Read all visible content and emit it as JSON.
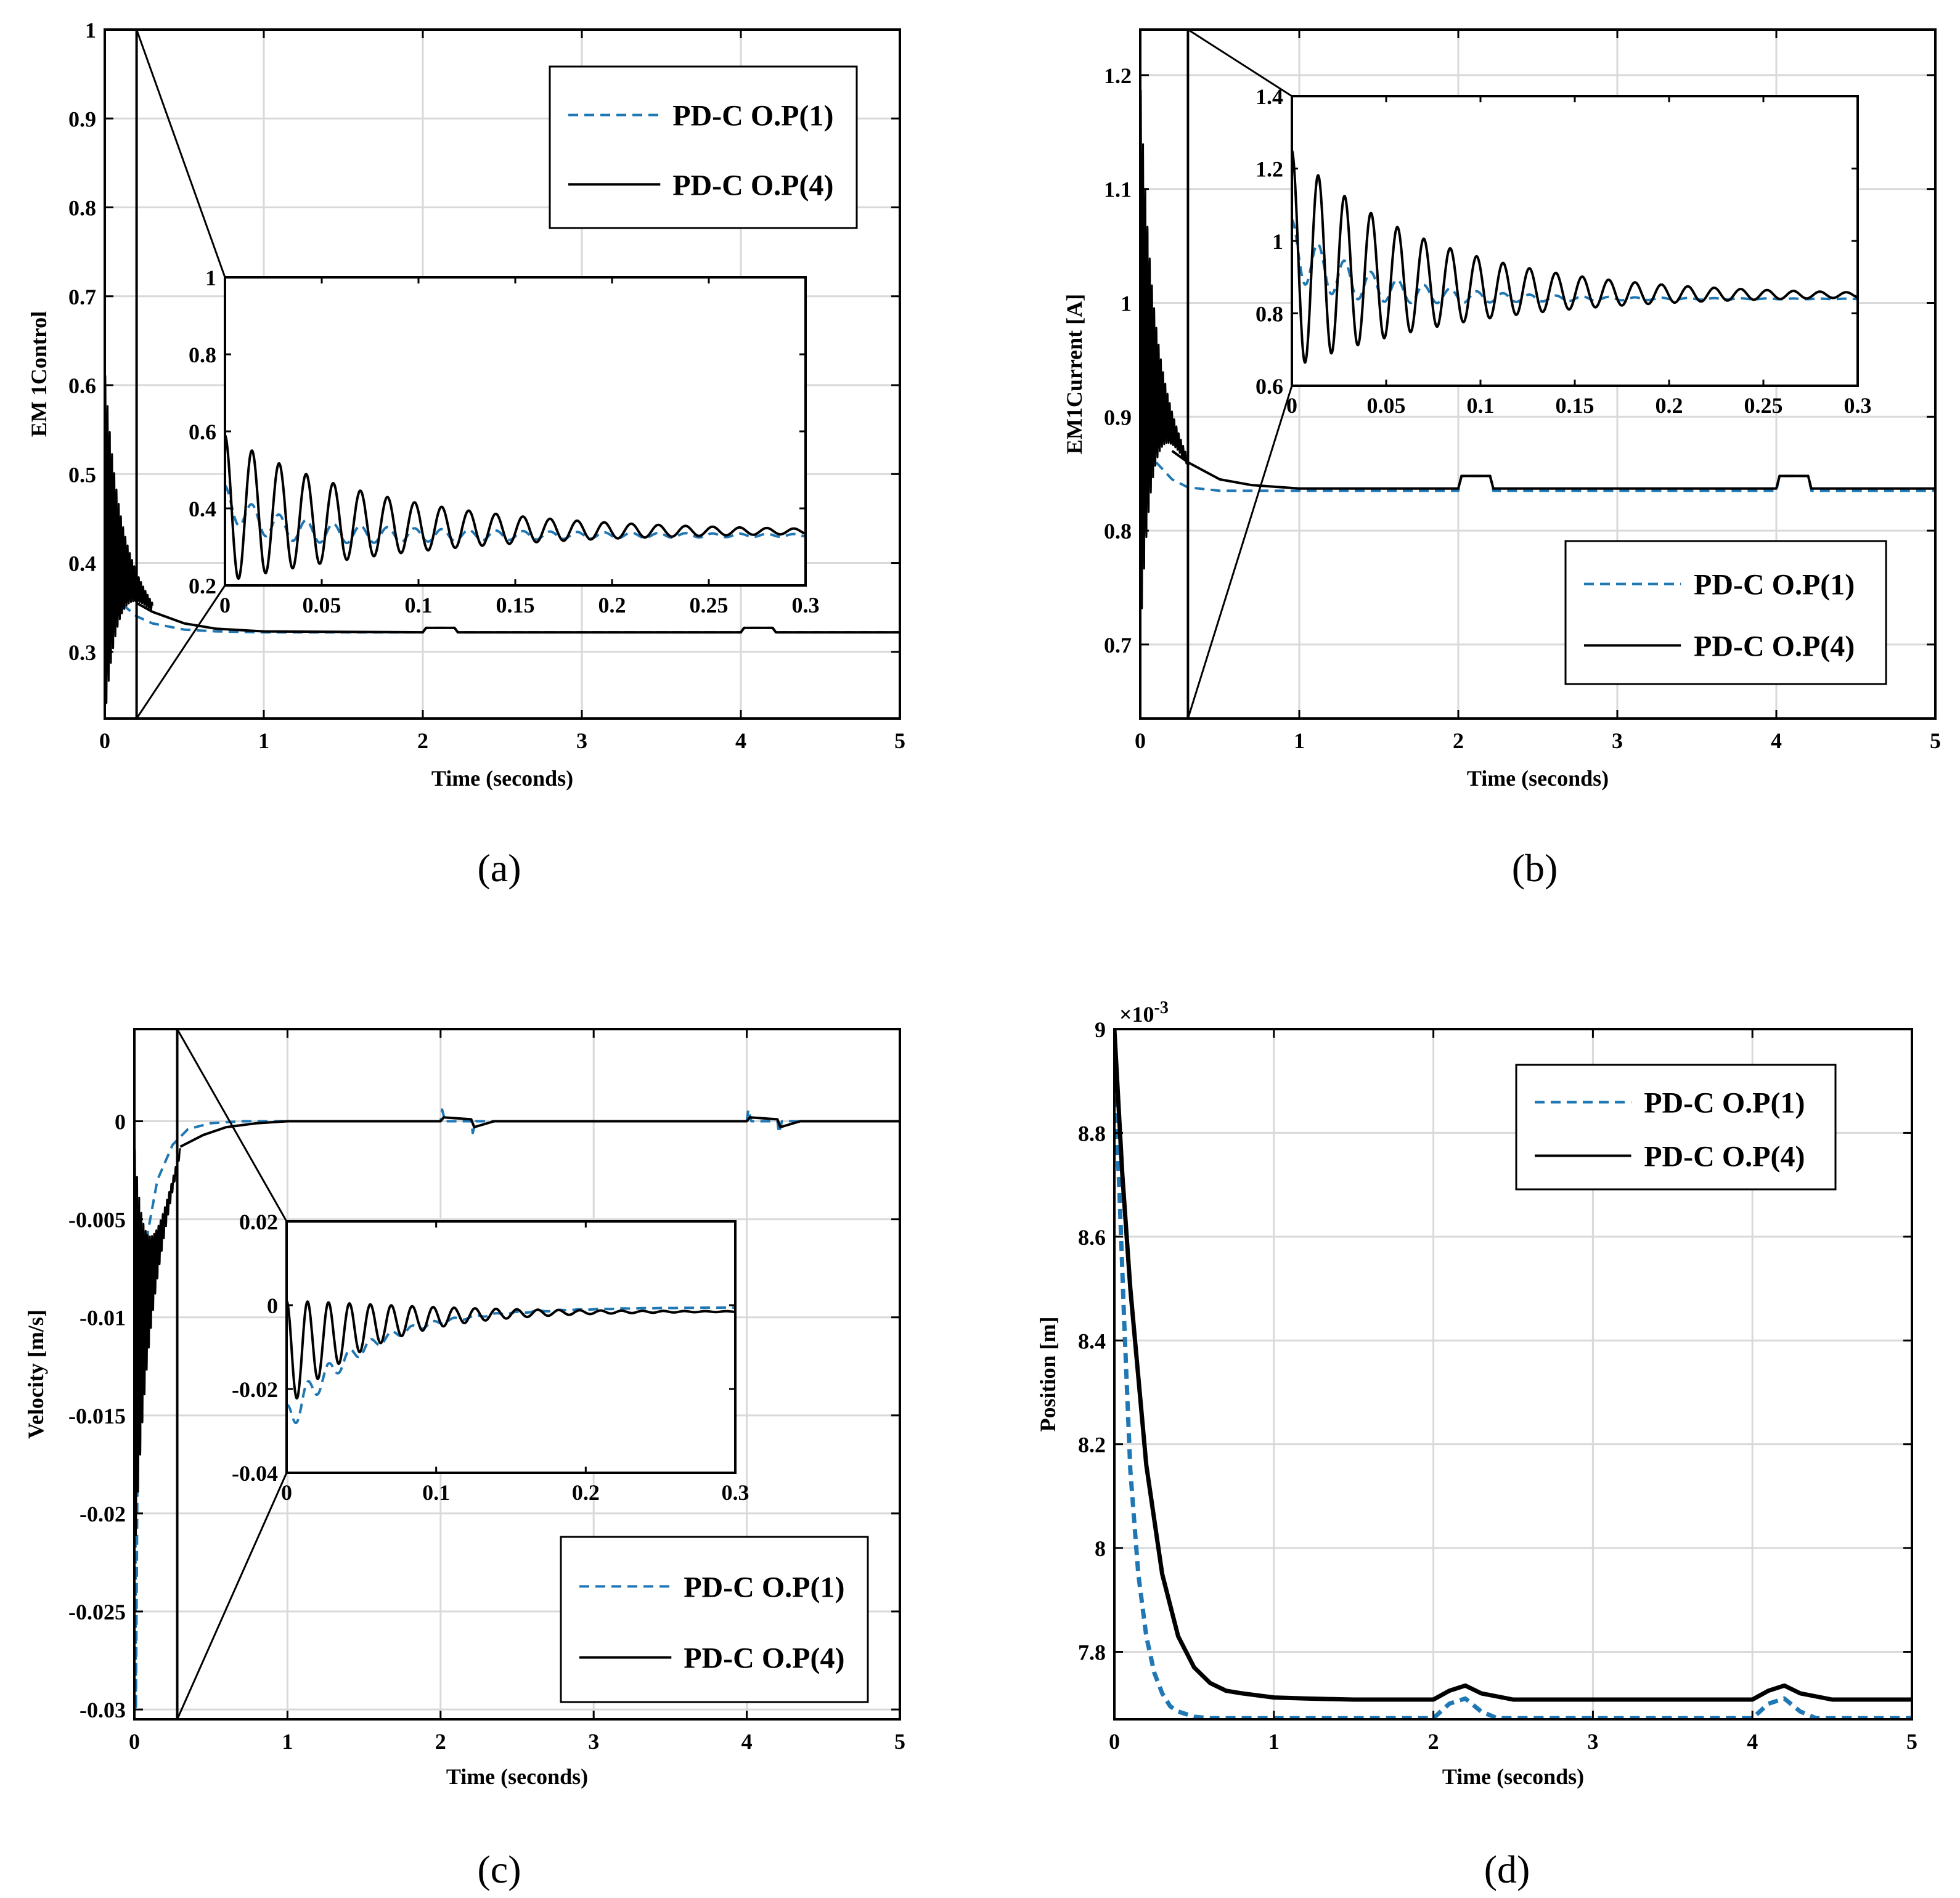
{
  "colors": {
    "op1": "#1f77b4",
    "op4": "#000000",
    "grid": "#d9d9d9"
  },
  "chart_data": [
    {
      "id": "a",
      "type": "line",
      "caption": "(a)",
      "xlabel": "Time (seconds)",
      "ylabel": "EM 1Control",
      "xlim": [
        0,
        5
      ],
      "ylim": [
        0.225,
        1.0
      ],
      "xticks": [
        "0",
        "1",
        "2",
        "3",
        "4",
        "5"
      ],
      "xtick_values": [
        0,
        1,
        2,
        3,
        4,
        5
      ],
      "yticks": [
        "0.3",
        "0.4",
        "0.5",
        "0.6",
        "0.7",
        "0.8",
        "0.9",
        "1"
      ],
      "ytick_values": [
        0.3,
        0.4,
        0.5,
        0.6,
        0.7,
        0.8,
        0.9,
        1.0
      ],
      "series": [
        {
          "name": "PD-C O.P(1)",
          "style": "dashed",
          "x": [
            0,
            0.02,
            0.05,
            0.1,
            0.2,
            0.3,
            0.5,
            0.7,
            1,
            2,
            2.02,
            2.2,
            2.22,
            4,
            4.02,
            4.2,
            4.22,
            5
          ],
          "y": [
            0.42,
            0.38,
            0.37,
            0.355,
            0.34,
            0.332,
            0.325,
            0.323,
            0.322,
            0.322,
            0.327,
            0.327,
            0.322,
            0.322,
            0.327,
            0.327,
            0.322,
            0.322
          ]
        },
        {
          "name": "PD-C O.P(4)",
          "style": "solid",
          "x": [
            0,
            0.1,
            0.2,
            0.3,
            0.5,
            0.7,
            1,
            2,
            2.02,
            2.2,
            2.22,
            4,
            4.02,
            4.2,
            4.22,
            5
          ],
          "y": [
            0.53,
            0.37,
            0.355,
            0.345,
            0.332,
            0.326,
            0.323,
            0.322,
            0.327,
            0.327,
            0.322,
            0.322,
            0.327,
            0.327,
            0.322,
            0.322
          ],
          "oscillation": {
            "t_end": 0.3,
            "period": 0.014,
            "amp0": 0.2,
            "decay": 0.08,
            "center0": 0.42,
            "center_end": 0.35
          }
        }
      ],
      "legend": {
        "placement": "top-right",
        "entries": [
          "PD-C O.P(1)",
          "PD-C O.P(4)"
        ]
      },
      "zoom_window": {
        "x": [
          0,
          0.2
        ]
      },
      "inset": {
        "xlim": [
          0,
          0.3
        ],
        "ylim": [
          0.2,
          1.0
        ],
        "xticks": [
          "0",
          "0.05",
          "0.1",
          "0.15",
          "0.2",
          "0.25",
          "0.3"
        ],
        "xtick_values": [
          0,
          0.05,
          0.1,
          0.15,
          0.2,
          0.25,
          0.3
        ],
        "yticks": [
          "0.2",
          "0.4",
          "0.6",
          "0.8",
          "1"
        ],
        "ytick_values": [
          0.2,
          0.4,
          0.6,
          0.8,
          1.0
        ],
        "series": [
          {
            "name": "PD-C O.P(1)",
            "style": "dashed",
            "osc": {
              "base": 0.33,
              "c0": 0.42,
              "amp0": 0.04,
              "tau": 0.02,
              "decay": 0.12,
              "period": 0.014
            }
          },
          {
            "name": "PD-C O.P(4)",
            "style": "solid",
            "osc": {
              "base": 0.34,
              "c0": 0.4,
              "amp0": 0.19,
              "tau": 0.06,
              "decay": 0.09,
              "period": 0.014
            }
          }
        ]
      }
    },
    {
      "id": "b",
      "type": "line",
      "caption": "(b)",
      "xlabel": "Time (seconds)",
      "ylabel": "EM1Current [A]",
      "xlim": [
        0,
        5
      ],
      "ylim": [
        0.635,
        1.24
      ],
      "xticks": [
        "0",
        "1",
        "2",
        "3",
        "4",
        "5"
      ],
      "xtick_values": [
        0,
        1,
        2,
        3,
        4,
        5
      ],
      "yticks": [
        "0.7",
        "0.8",
        "0.9",
        "1",
        "1.1",
        "1.2"
      ],
      "ytick_values": [
        0.7,
        0.8,
        0.9,
        1.0,
        1.1,
        1.2
      ],
      "series": [
        {
          "name": "PD-C O.P(1)",
          "style": "dashed",
          "x": [
            0,
            0.05,
            0.1,
            0.2,
            0.3,
            0.5,
            1,
            2,
            2.02,
            2.2,
            2.22,
            4,
            4.02,
            4.2,
            4.22,
            5
          ],
          "y": [
            1.0,
            0.9,
            0.86,
            0.845,
            0.838,
            0.835,
            0.835,
            0.835,
            0.848,
            0.848,
            0.835,
            0.835,
            0.848,
            0.848,
            0.835,
            0.835
          ]
        },
        {
          "name": "PD-C O.P(4)",
          "style": "solid",
          "x": [
            0,
            0.1,
            0.2,
            0.3,
            0.5,
            0.7,
            1,
            2,
            2.02,
            2.2,
            2.22,
            4,
            4.02,
            4.2,
            4.22,
            5
          ],
          "y": [
            1.15,
            0.88,
            0.87,
            0.86,
            0.845,
            0.84,
            0.837,
            0.837,
            0.848,
            0.848,
            0.837,
            0.837,
            0.848,
            0.848,
            0.837,
            0.837
          ],
          "oscillation": {
            "t_end": 0.3,
            "period": 0.014,
            "amp0": 0.25,
            "decay": 0.07,
            "center0": 0.95,
            "center_end": 0.86
          }
        }
      ],
      "legend": {
        "placement": "bottom-right",
        "entries": [
          "PD-C O.P(1)",
          "PD-C O.P(4)"
        ]
      },
      "zoom_window": {
        "x": [
          0,
          0.3
        ]
      },
      "inset": {
        "xlim": [
          0,
          0.3
        ],
        "ylim": [
          0.6,
          1.4
        ],
        "xticks": [
          "0",
          "0.05",
          "0.1",
          "0.15",
          "0.2",
          "0.25",
          "0.3"
        ],
        "xtick_values": [
          0,
          0.05,
          0.1,
          0.15,
          0.2,
          0.25,
          0.3
        ],
        "yticks": [
          "0.6",
          "0.8",
          "1",
          "1.2",
          "1.4"
        ],
        "ytick_values": [
          0.6,
          0.8,
          1.0,
          1.2,
          1.4
        ],
        "series": [
          {
            "name": "PD-C O.P(1)",
            "style": "dashed",
            "osc": {
              "base": 0.84,
              "c0": 0.98,
              "amp0": 0.08,
              "tau": 0.03,
              "decay": 0.06,
              "period": 0.014
            }
          },
          {
            "name": "PD-C O.P(4)",
            "style": "solid",
            "osc": {
              "base": 0.85,
              "c0": 0.95,
              "amp0": 0.3,
              "tau": 0.06,
              "decay": 0.08,
              "period": 0.014
            }
          }
        ]
      }
    },
    {
      "id": "c",
      "type": "line",
      "caption": "(c)",
      "xlabel": "Time (seconds)",
      "ylabel": "Velocity [m/s]",
      "xlim": [
        0,
        5
      ],
      "ylim": [
        -0.0305,
        0.0047
      ],
      "xticks": [
        "0",
        "1",
        "2",
        "3",
        "4",
        "5"
      ],
      "xtick_values": [
        0,
        1,
        2,
        3,
        4,
        5
      ],
      "yticks": [
        "-0.03",
        "-0.025",
        "-0.02",
        "-0.015",
        "-0.01",
        "-0.005",
        "0"
      ],
      "ytick_values": [
        -0.03,
        -0.025,
        -0.02,
        -0.015,
        -0.01,
        -0.005,
        0
      ],
      "series": [
        {
          "name": "PD-C O.P(1)",
          "style": "dashed",
          "x": [
            0,
            0.01,
            0.02,
            0.04,
            0.08,
            0.15,
            0.25,
            0.35,
            0.5,
            0.7,
            1,
            2,
            2.01,
            2.03,
            2.2,
            2.21,
            2.23,
            2.4,
            4,
            4.01,
            4.03,
            4.2,
            4.21,
            4.23,
            4.4,
            5
          ],
          "y": [
            0,
            -0.03,
            -0.018,
            -0.01,
            -0.006,
            -0.003,
            -0.0012,
            -0.0004,
            -0.0001,
            0,
            0,
            0,
            0.0006,
            0,
            0,
            -0.0006,
            0,
            0,
            0,
            0.0006,
            0,
            0,
            -0.0006,
            0,
            0,
            0
          ]
        },
        {
          "name": "PD-C O.P(4)",
          "style": "solid",
          "x": [
            0,
            0.3,
            0.45,
            0.6,
            0.8,
            1,
            1.3,
            2,
            2.02,
            2.2,
            2.22,
            2.35,
            4,
            4.02,
            4.2,
            4.22,
            4.35,
            5
          ],
          "y": [
            -0.0045,
            -0.0013,
            -0.0007,
            -0.0003,
            -0.0001,
            0,
            0,
            0,
            0.0002,
            0.0001,
            -0.0003,
            0,
            0,
            0.0002,
            0.0001,
            -0.0003,
            0,
            0
          ],
          "oscillation": {
            "t_end": 0.3,
            "period": 0.014,
            "amp0": 0.011,
            "decay": 0.07,
            "center0": -0.012,
            "center_end": -0.0015
          }
        }
      ],
      "legend": {
        "placement": "bottom-right",
        "entries": [
          "PD-C O.P(1)",
          "PD-C O.P(4)"
        ]
      },
      "zoom_window": {
        "x": [
          0,
          0.28
        ]
      },
      "inset": {
        "xlim": [
          0,
          0.3
        ],
        "ylim": [
          -0.04,
          0.02
        ],
        "xticks": [
          "0",
          "0.1",
          "0.2",
          "0.3"
        ],
        "xtick_values": [
          0,
          0.1,
          0.2,
          0.3
        ],
        "yticks": [
          "-0.04",
          "-0.02",
          "0",
          "0.02"
        ],
        "ytick_values": [
          -0.04,
          -0.02,
          0,
          0.02
        ],
        "series": [
          {
            "name": "PD-C O.P(1)",
            "style": "dashed",
            "osc": {
              "base": -0.0005,
              "c0": -0.028,
              "amp0": 0.004,
              "tau": 0.05,
              "decay": 0.05,
              "period": 0.014
            }
          },
          {
            "name": "PD-C O.P(4)",
            "style": "solid",
            "osc": {
              "base": -0.0015,
              "c0": -0.012,
              "amp0": 0.013,
              "tau": 0.05,
              "decay": 0.06,
              "period": 0.014
            }
          }
        ]
      }
    },
    {
      "id": "d",
      "type": "line",
      "caption": "(d)",
      "xlabel": "Time (seconds)",
      "ylabel": "Position [m]",
      "exponent": "×10",
      "exponent_power": "-3",
      "xlim": [
        0,
        5
      ],
      "ylim": [
        7.67,
        9.0
      ],
      "xticks": [
        "0",
        "1",
        "2",
        "3",
        "4",
        "5"
      ],
      "xtick_values": [
        0,
        1,
        2,
        3,
        4,
        5
      ],
      "yticks": [
        "7.8",
        "8",
        "8.2",
        "8.4",
        "8.6",
        "8.8",
        "9"
      ],
      "ytick_values": [
        7.8,
        8.0,
        8.2,
        8.4,
        8.6,
        8.8,
        9.0
      ],
      "series": [
        {
          "name": "PD-C O.P(1)",
          "style": "dashed",
          "x": [
            0,
            0.03,
            0.06,
            0.1,
            0.15,
            0.2,
            0.25,
            0.3,
            0.35,
            0.4,
            0.5,
            0.6,
            1,
            2,
            2.1,
            2.2,
            2.3,
            2.4,
            4,
            4.1,
            4.2,
            4.3,
            4.4,
            5
          ],
          "y": [
            8.9,
            8.7,
            8.45,
            8.15,
            7.95,
            7.83,
            7.76,
            7.72,
            7.695,
            7.685,
            7.675,
            7.672,
            7.672,
            7.672,
            7.7,
            7.71,
            7.685,
            7.672,
            7.672,
            7.7,
            7.71,
            7.685,
            7.672,
            7.672
          ]
        },
        {
          "name": "PD-C O.P(4)",
          "style": "solid",
          "x": [
            0,
            0.05,
            0.1,
            0.2,
            0.3,
            0.4,
            0.5,
            0.6,
            0.7,
            0.8,
            1,
            1.2,
            1.5,
            2,
            2.1,
            2.2,
            2.3,
            2.5,
            4,
            4.1,
            4.2,
            4.3,
            4.5,
            5
          ],
          "y": [
            9.0,
            8.72,
            8.5,
            8.16,
            7.95,
            7.83,
            7.77,
            7.74,
            7.725,
            7.72,
            7.712,
            7.71,
            7.708,
            7.708,
            7.725,
            7.735,
            7.72,
            7.708,
            7.708,
            7.725,
            7.735,
            7.72,
            7.708,
            7.708
          ]
        }
      ],
      "legend": {
        "placement": "top-right",
        "entries": [
          "PD-C O.P(1)",
          "PD-C O.P(4)"
        ]
      }
    }
  ]
}
